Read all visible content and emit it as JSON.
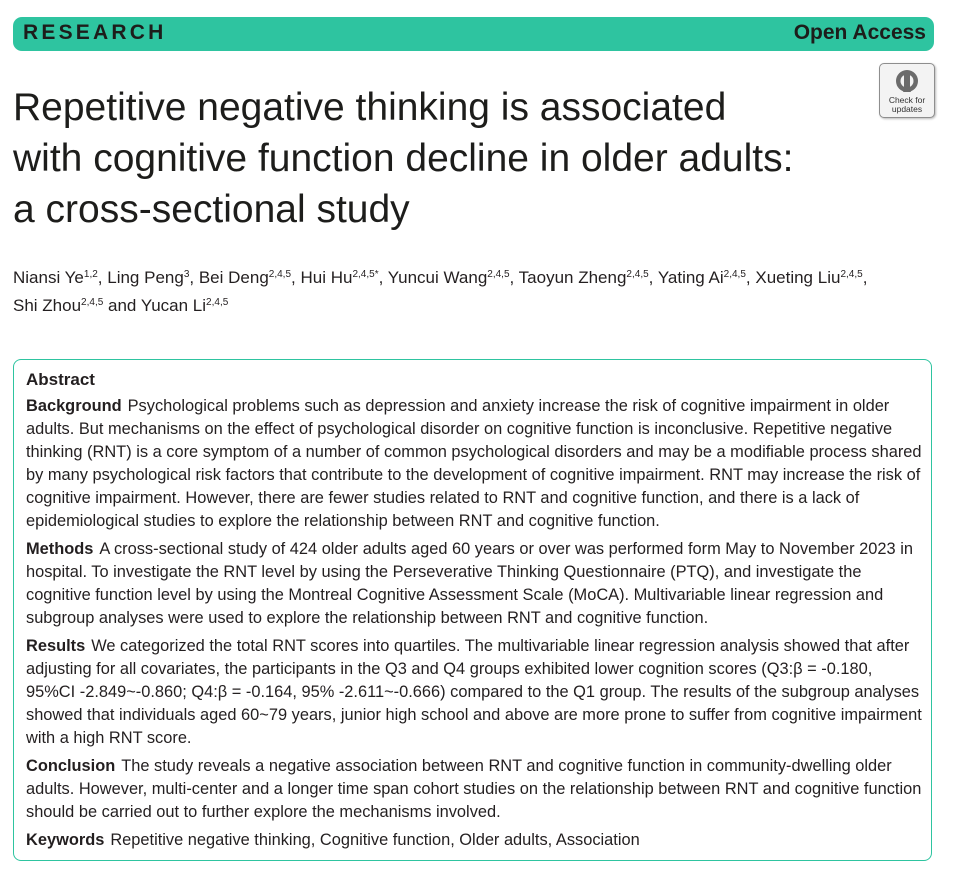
{
  "banner": {
    "section": "RESEARCH",
    "access": "Open Access"
  },
  "badge": {
    "line1": "Check for",
    "line2": "updates"
  },
  "title": {
    "line1": "Repetitive negative thinking is associated",
    "line2": "with cognitive function decline in older adults:",
    "line3": "a cross-sectional study"
  },
  "authors": [
    {
      "name": "Niansi Ye",
      "sup": "1,2"
    },
    {
      "name": "Ling Peng",
      "sup": "3"
    },
    {
      "name": "Bei Deng",
      "sup": "2,4,5"
    },
    {
      "name": "Hui Hu",
      "sup": "2,4,5*"
    },
    {
      "name": "Yuncui Wang",
      "sup": "2,4,5"
    },
    {
      "name": "Taoyun Zheng",
      "sup": "2,4,5"
    },
    {
      "name": "Yating Ai",
      "sup": "2,4,5"
    },
    {
      "name": "Xueting Liu",
      "sup": "2,4,5"
    },
    {
      "name": "Shi Zhou",
      "sup": "2,4,5"
    },
    {
      "name": "Yucan Li",
      "sup": "2,4,5"
    }
  ],
  "author_separators": {
    "comma": ", ",
    "and": " and "
  },
  "abstract": {
    "heading": "Abstract",
    "background": {
      "label": "Background",
      "text": "Psychological problems such as depression and anxiety increase the risk of cognitive impairment in older adults. But mechanisms on the effect of psychological disorder on cognitive function is inconclusive. Repetitive negative thinking (RNT) is a core symptom of a number of common psychological disorders and may be a modifiable process shared by many psychological risk factors that contribute to the development of cognitive impairment. RNT may increase the risk of cognitive impairment. However, there are fewer studies related to RNT and cognitive function, and there is a lack of epidemiological studies to explore the relationship between RNT and cognitive function."
    },
    "methods": {
      "label": "Methods",
      "text": "A cross-sectional study of 424 older adults aged 60 years or over was performed form May to November 2023 in hospital. To investigate the RNT level by using the Perseverative Thinking Questionnaire (PTQ), and investigate the cognitive function level by using the Montreal Cognitive Assessment Scale (MoCA). Multivariable linear regression and subgroup analyses were used to explore the relationship between RNT and cognitive function."
    },
    "results": {
      "label": "Results",
      "text": "We categorized the total RNT scores into quartiles. The multivariable linear regression analysis showed that after adjusting for all covariates, the participants in the Q3 and Q4 groups exhibited lower cognition scores (Q3:β = -0.180, 95%CI -2.849~-0.860; Q4:β = -0.164, 95% -2.611~-0.666) compared to the Q1 group. The results of the subgroup analyses showed that individuals aged 60~79 years, junior high school and above are more prone to suffer from cognitive impairment with a high RNT score."
    },
    "conclusion": {
      "label": "Conclusion",
      "text": "The study reveals a negative association between RNT and cognitive function in community-dwelling older adults. However, multi-center and a longer time span cohort studies on the relationship between RNT and cognitive function should be carried out to further explore the mechanisms involved."
    },
    "keywords": {
      "label": "Keywords",
      "text": "Repetitive negative thinking, Cognitive function, Older adults, Association"
    }
  },
  "colors": {
    "accent": "#2ec4a0",
    "text": "#231f20"
  },
  "icons": {
    "badge": "crossmark-icon"
  }
}
